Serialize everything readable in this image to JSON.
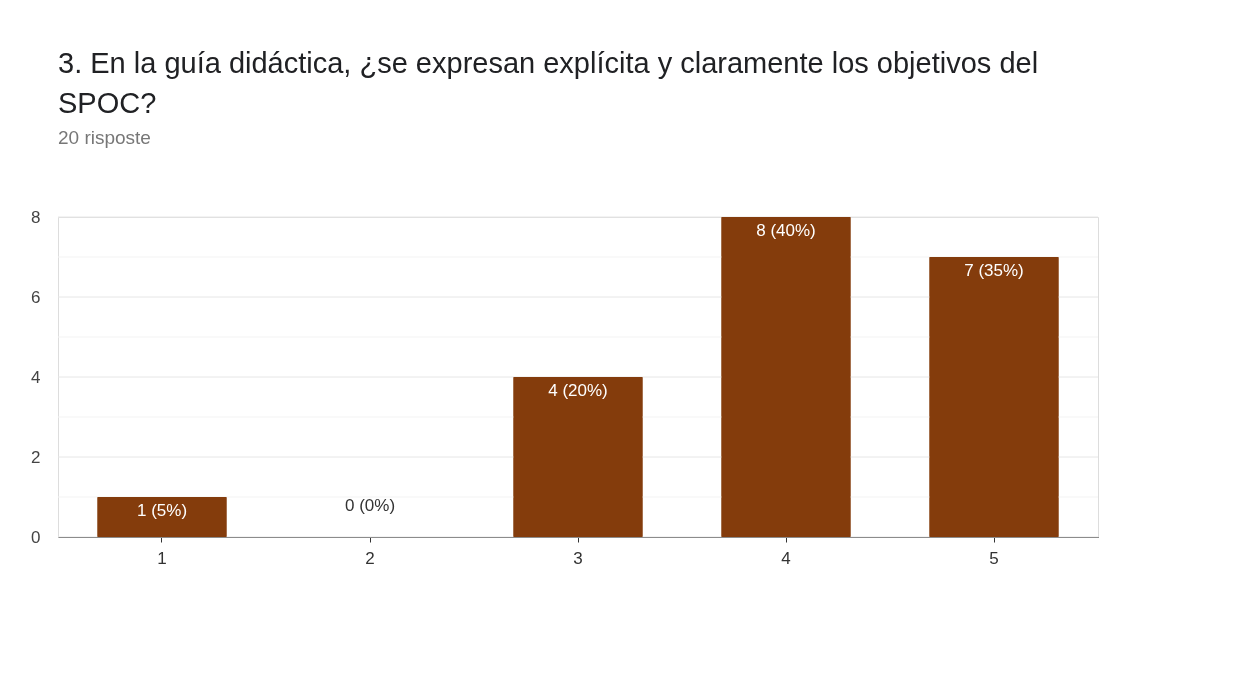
{
  "chart_data": {
    "type": "bar",
    "title": "3. En la guía didáctica, ¿se expresan explícita y claramente los objetivos del SPOC?",
    "subtitle": "20 risposte",
    "categories": [
      "1",
      "2",
      "3",
      "4",
      "5"
    ],
    "values": [
      1,
      0,
      4,
      8,
      7
    ],
    "value_labels": [
      "1 (5%)",
      "0 (0%)",
      "4 (20%)",
      "8 (40%)",
      "7 (35%)"
    ],
    "color": "#843c0c",
    "ylim": [
      0,
      8
    ],
    "yticks": [
      0,
      {
        "value": 1,
        "label": null
      },
      2,
      {
        "value": 3,
        "label": null
      },
      4,
      {
        "value": 5,
        "label": null
      },
      6,
      {
        "value": 7,
        "label": null
      },
      8
    ],
    "grid": "y"
  }
}
